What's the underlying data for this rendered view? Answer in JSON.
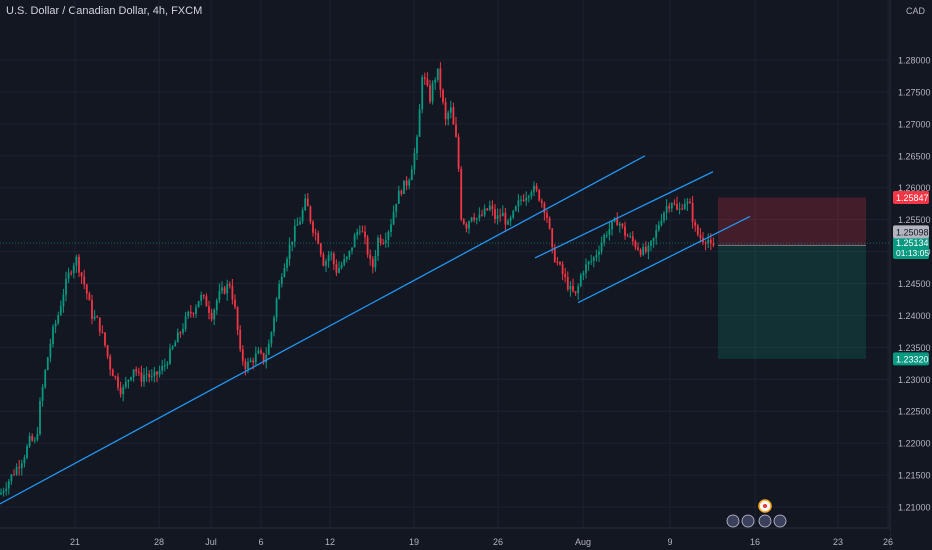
{
  "header": {
    "symbol_title": "U.S. Dollar / Canadian Dollar, 4h, FXCM"
  },
  "chart_data": {
    "type": "candlestick",
    "currency_label": "CAD",
    "y_ticks": [
      "1.28000",
      "1.27500",
      "1.27000",
      "1.26500",
      "1.26000",
      "1.25500",
      "1.25000",
      "1.24500",
      "1.24000",
      "1.23500",
      "1.23000",
      "1.22500",
      "1.22000",
      "1.21500",
      "1.21000"
    ],
    "y_range": [
      1.207,
      1.2885
    ],
    "x_ticks": [
      "21",
      "28",
      "Jul",
      "6",
      "12",
      "19",
      "26",
      "Aug",
      "9",
      "16",
      "23",
      "26"
    ],
    "price_labels": {
      "stop": {
        "text": "1.25847",
        "value": 1.25847,
        "color": "#f23645"
      },
      "current": {
        "text": "1.25134",
        "value": 1.25134,
        "color": "#089981"
      },
      "countdown": "01:13:05",
      "entry": {
        "text": "1.25098",
        "value": 1.25098,
        "color": "#b2b5be"
      },
      "target": {
        "text": "1.23320",
        "value": 1.2332,
        "color": "#089981"
      }
    },
    "trend_path": [
      [
        0,
        1.212
      ],
      [
        8,
        1.214
      ],
      [
        16,
        1.216
      ],
      [
        24,
        1.218
      ],
      [
        30,
        1.2205
      ],
      [
        36,
        1.22
      ],
      [
        40,
        1.226
      ],
      [
        46,
        1.232
      ],
      [
        52,
        1.237
      ],
      [
        58,
        1.24
      ],
      [
        64,
        1.244
      ],
      [
        70,
        1.247
      ],
      [
        76,
        1.249
      ],
      [
        80,
        1.247
      ],
      [
        86,
        1.244
      ],
      [
        92,
        1.24
      ],
      [
        98,
        1.239
      ],
      [
        104,
        1.236
      ],
      [
        110,
        1.232
      ],
      [
        116,
        1.23
      ],
      [
        122,
        1.228
      ],
      [
        128,
        1.23
      ],
      [
        134,
        1.232
      ],
      [
        140,
        1.23
      ],
      [
        146,
        1.231
      ],
      [
        152,
        1.23
      ],
      [
        158,
        1.231
      ],
      [
        164,
        1.232
      ],
      [
        170,
        1.234
      ],
      [
        176,
        1.236
      ],
      [
        182,
        1.238
      ],
      [
        188,
        1.24
      ],
      [
        194,
        1.241
      ],
      [
        200,
        1.243
      ],
      [
        206,
        1.242
      ],
      [
        212,
        1.24
      ],
      [
        218,
        1.243
      ],
      [
        224,
        1.244
      ],
      [
        230,
        1.245
      ],
      [
        236,
        1.24
      ],
      [
        240,
        1.234
      ],
      [
        246,
        1.232
      ],
      [
        252,
        1.233
      ],
      [
        258,
        1.234
      ],
      [
        264,
        1.233
      ],
      [
        270,
        1.236
      ],
      [
        276,
        1.242
      ],
      [
        282,
        1.247
      ],
      [
        288,
        1.25
      ],
      [
        294,
        1.253
      ],
      [
        300,
        1.255
      ],
      [
        306,
        1.258
      ],
      [
        312,
        1.254
      ],
      [
        318,
        1.252
      ],
      [
        324,
        1.248
      ],
      [
        330,
        1.25
      ],
      [
        336,
        1.247
      ],
      [
        342,
        1.248
      ],
      [
        348,
        1.249
      ],
      [
        354,
        1.252
      ],
      [
        360,
        1.254
      ],
      [
        366,
        1.251
      ],
      [
        372,
        1.247
      ],
      [
        378,
        1.252
      ],
      [
        384,
        1.252
      ],
      [
        390,
        1.254
      ],
      [
        396,
        1.258
      ],
      [
        402,
        1.26
      ],
      [
        408,
        1.261
      ],
      [
        414,
        1.265
      ],
      [
        418,
        1.268
      ],
      [
        422,
        1.278
      ],
      [
        426,
        1.276
      ],
      [
        430,
        1.274
      ],
      [
        434,
        1.277
      ],
      [
        438,
        1.278
      ],
      [
        442,
        1.274
      ],
      [
        446,
        1.27
      ],
      [
        450,
        1.273
      ],
      [
        454,
        1.269
      ],
      [
        458,
        1.266
      ],
      [
        460,
        1.256
      ],
      [
        466,
        1.254
      ],
      [
        472,
        1.256
      ],
      [
        478,
        1.255
      ],
      [
        484,
        1.256
      ],
      [
        490,
        1.257
      ],
      [
        496,
        1.255
      ],
      [
        502,
        1.256
      ],
      [
        508,
        1.254
      ],
      [
        514,
        1.256
      ],
      [
        520,
        1.258
      ],
      [
        526,
        1.259
      ],
      [
        532,
        1.26
      ],
      [
        538,
        1.259
      ],
      [
        544,
        1.257
      ],
      [
        548,
        1.255
      ],
      [
        552,
        1.25
      ],
      [
        558,
        1.248
      ],
      [
        564,
        1.246
      ],
      [
        570,
        1.244
      ],
      [
        576,
        1.243
      ],
      [
        582,
        1.247
      ],
      [
        588,
        1.248
      ],
      [
        594,
        1.249
      ],
      [
        600,
        1.251
      ],
      [
        606,
        1.253
      ],
      [
        612,
        1.254
      ],
      [
        618,
        1.255
      ],
      [
        624,
        1.253
      ],
      [
        630,
        1.252
      ],
      [
        636,
        1.251
      ],
      [
        642,
        1.25
      ],
      [
        648,
        1.25
      ],
      [
        654,
        1.252
      ],
      [
        660,
        1.255
      ],
      [
        666,
        1.257
      ],
      [
        672,
        1.258
      ],
      [
        678,
        1.256
      ],
      [
        684,
        1.258
      ],
      [
        690,
        1.257
      ],
      [
        696,
        1.253
      ],
      [
        702,
        1.252
      ],
      [
        708,
        1.252
      ],
      [
        712,
        1.25
      ],
      [
        716,
        1.2513
      ]
    ],
    "trend_lines": [
      {
        "p1": [
          0,
          1.2105
        ],
        "p2": [
          645,
          1.265
        ],
        "color": "#2196f3"
      },
      {
        "p1": [
          535,
          1.249
        ],
        "p2": [
          713,
          1.2625
        ],
        "color": "#2196f3"
      },
      {
        "p1": [
          578,
          1.242
        ],
        "p2": [
          750,
          1.2555
        ],
        "color": "#2196f3"
      }
    ],
    "position": {
      "entry": 1.25098,
      "stop": 1.25847,
      "target": 1.2332
    }
  }
}
